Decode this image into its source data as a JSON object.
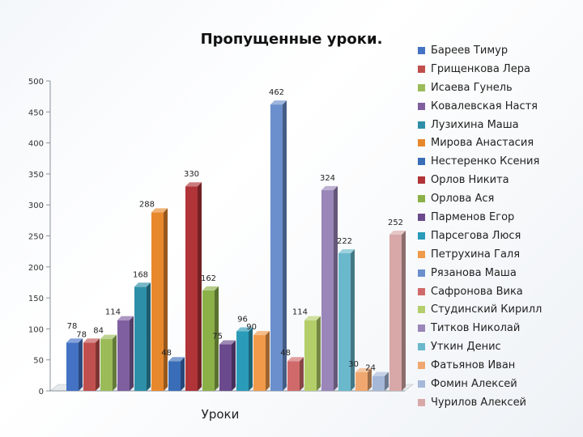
{
  "chart_data": {
    "type": "bar",
    "title": "Пропущенные уроки.",
    "xlabel": "Уроки",
    "ylabel": "",
    "ylim": [
      0,
      500
    ],
    "yticks": [
      0,
      50,
      100,
      150,
      200,
      250,
      300,
      350,
      400,
      450,
      500
    ],
    "grid": false,
    "legend_position": "right",
    "series": [
      {
        "name": "Бареев Тимур",
        "value": 78,
        "label": "78",
        "color": "#4472c4"
      },
      {
        "name": "Грищенкова Лера",
        "value": 78,
        "label": "78",
        "color": "#c0504d"
      },
      {
        "name": "Исаева Гунель",
        "value": 84,
        "label": "84",
        "color": "#9bbb59"
      },
      {
        "name": "Ковалевская Настя",
        "value": 114,
        "label": "114",
        "color": "#7f5f9f"
      },
      {
        "name": "Лузихина Маша",
        "value": 168,
        "label": "168",
        "color": "#2e8fa8"
      },
      {
        "name": "Мирова Анастасия",
        "value": 288,
        "label": "288",
        "color": "#e8882c"
      },
      {
        "name": "Нестеренко Ксения",
        "value": 48,
        "label": "48",
        "color": "#3a6db8"
      },
      {
        "name": "Орлов Никита",
        "value": 330,
        "label": "330",
        "color": "#b03438"
      },
      {
        "name": "Орлова Ася",
        "value": 162,
        "label": "162",
        "color": "#8bb048"
      },
      {
        "name": "Парменов Егор",
        "value": 75,
        "label": "75",
        "color": "#6a4a8c"
      },
      {
        "name": "Парсегова Люся",
        "value": 96,
        "label": "96",
        "color": "#2a9bb8"
      },
      {
        "name": "Петрухина Галя",
        "value": 90,
        "label": "90",
        "color": "#f09a4a"
      },
      {
        "name": "Рязанова Маша",
        "value": 462,
        "label": "462",
        "color": "#6a8fcc"
      },
      {
        "name": "Сафронова Вика",
        "value": 48,
        "label": "48",
        "color": "#d06a6a"
      },
      {
        "name": "Студинский Кирилл",
        "value": 114,
        "label": "114",
        "color": "#b4cf6a"
      },
      {
        "name": "Титков Николай",
        "value": 324,
        "label": "324",
        "color": "#9a86b8"
      },
      {
        "name": "Уткин Денис",
        "value": 222,
        "label": "222",
        "color": "#6ab8cc"
      },
      {
        "name": "Фатьянов Иван",
        "value": 30,
        "label": "30",
        "color": "#f0a870"
      },
      {
        "name": "Фомин Алексей",
        "value": 24,
        "label": "24",
        "color": "#a6b8d8"
      },
      {
        "name": "Чурилов Алексей",
        "value": 252,
        "label": "252",
        "color": "#d8a8a8"
      }
    ]
  }
}
